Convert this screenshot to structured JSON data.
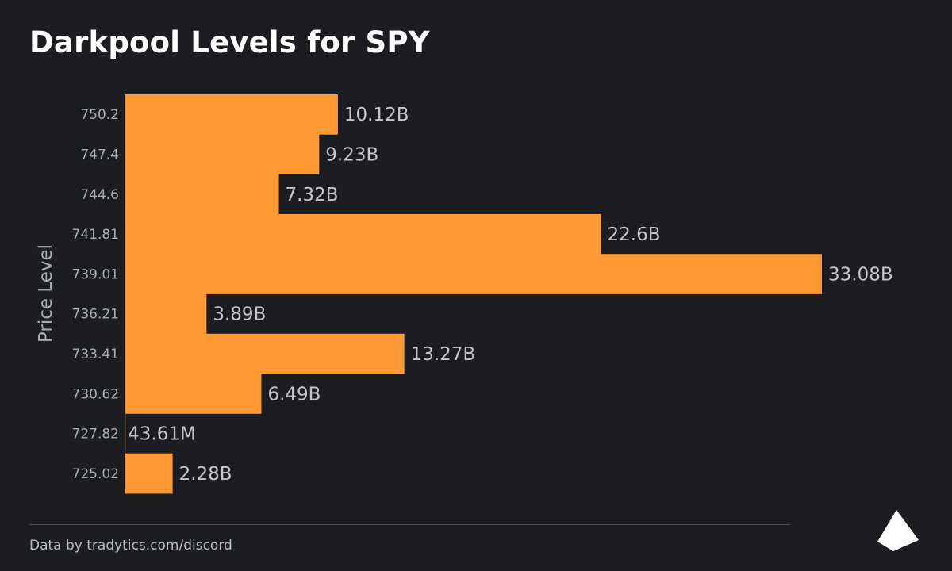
{
  "header": {
    "title": "Darkpool Levels for SPY"
  },
  "footer": {
    "text": "Data by tradytics.com/discord"
  },
  "logo": {
    "icon": "triangle-logo-icon"
  },
  "colors": {
    "background": "#1c1d21",
    "bar": "#ff9933",
    "tick_label": "#a9acb2",
    "value_label": "#c4c6cb",
    "axis_label": "#a9acb2"
  },
  "chart_data": {
    "type": "bar",
    "orientation": "horizontal",
    "title": "Darkpool Levels for SPY",
    "ylabel": "Price Level",
    "xlabel": "",
    "grid": false,
    "categories": [
      "750.2",
      "747.4",
      "744.6",
      "741.81",
      "739.01",
      "736.21",
      "733.41",
      "730.62",
      "727.82",
      "725.02"
    ],
    "values": [
      10.12,
      9.23,
      7.32,
      22.6,
      33.08,
      3.89,
      13.27,
      6.49,
      0.04361,
      2.28
    ],
    "value_unit": "B",
    "value_labels": [
      "10.12B",
      "9.23B",
      "7.32B",
      "22.6B",
      "33.08B",
      "3.89B",
      "13.27B",
      "6.49B",
      "43.61M",
      "2.28B"
    ],
    "xlim": [
      0,
      33.08
    ]
  }
}
